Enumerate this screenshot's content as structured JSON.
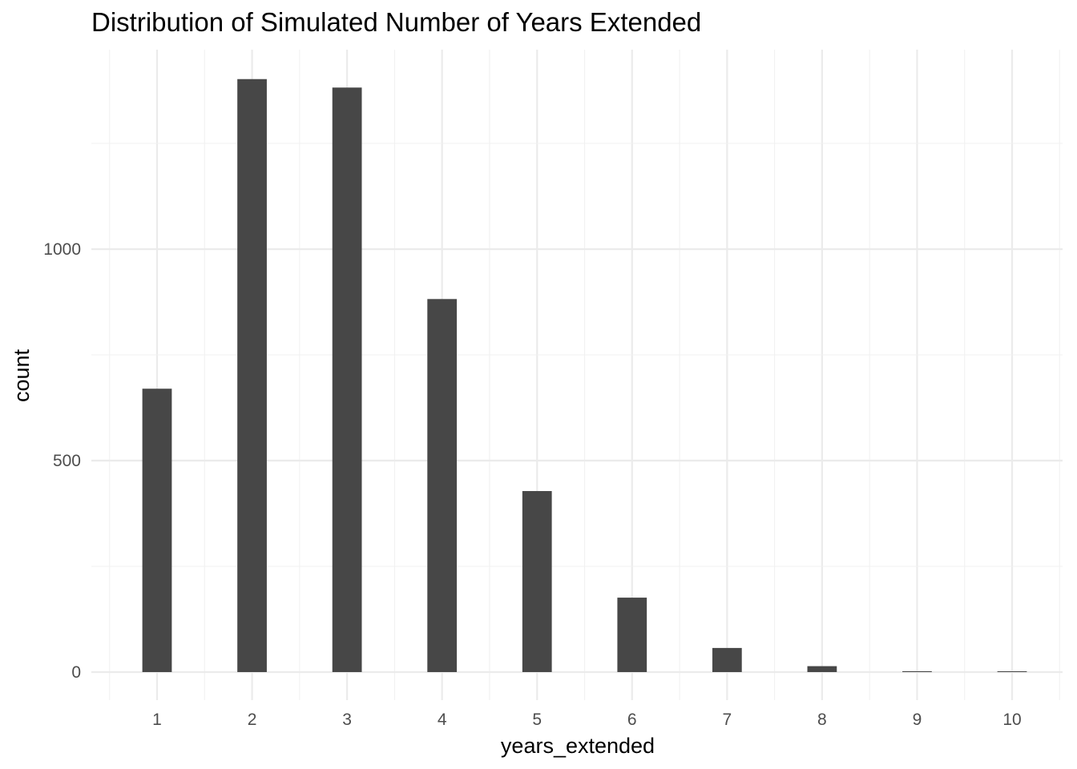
{
  "chart_data": {
    "type": "bar",
    "title": "Distribution of Simulated Number of Years Extended",
    "xlabel": "years_extended",
    "ylabel": "count",
    "x": [
      1,
      2,
      3,
      4,
      5,
      6,
      7,
      8,
      9,
      10
    ],
    "x_tick_labels": [
      "1",
      "2",
      "3",
      "4",
      "5",
      "6",
      "7",
      "8",
      "9",
      "10"
    ],
    "values": [
      670,
      1402,
      1382,
      882,
      428,
      176,
      57,
      14,
      2,
      1
    ],
    "y_ticks": [
      0,
      500,
      1000
    ],
    "y_tick_labels": [
      "0",
      "500",
      "1000"
    ],
    "xlim": [
      0.5,
      10.5
    ],
    "ylim": [
      -70,
      1470
    ],
    "grid": true,
    "bar_color": "#474747"
  }
}
